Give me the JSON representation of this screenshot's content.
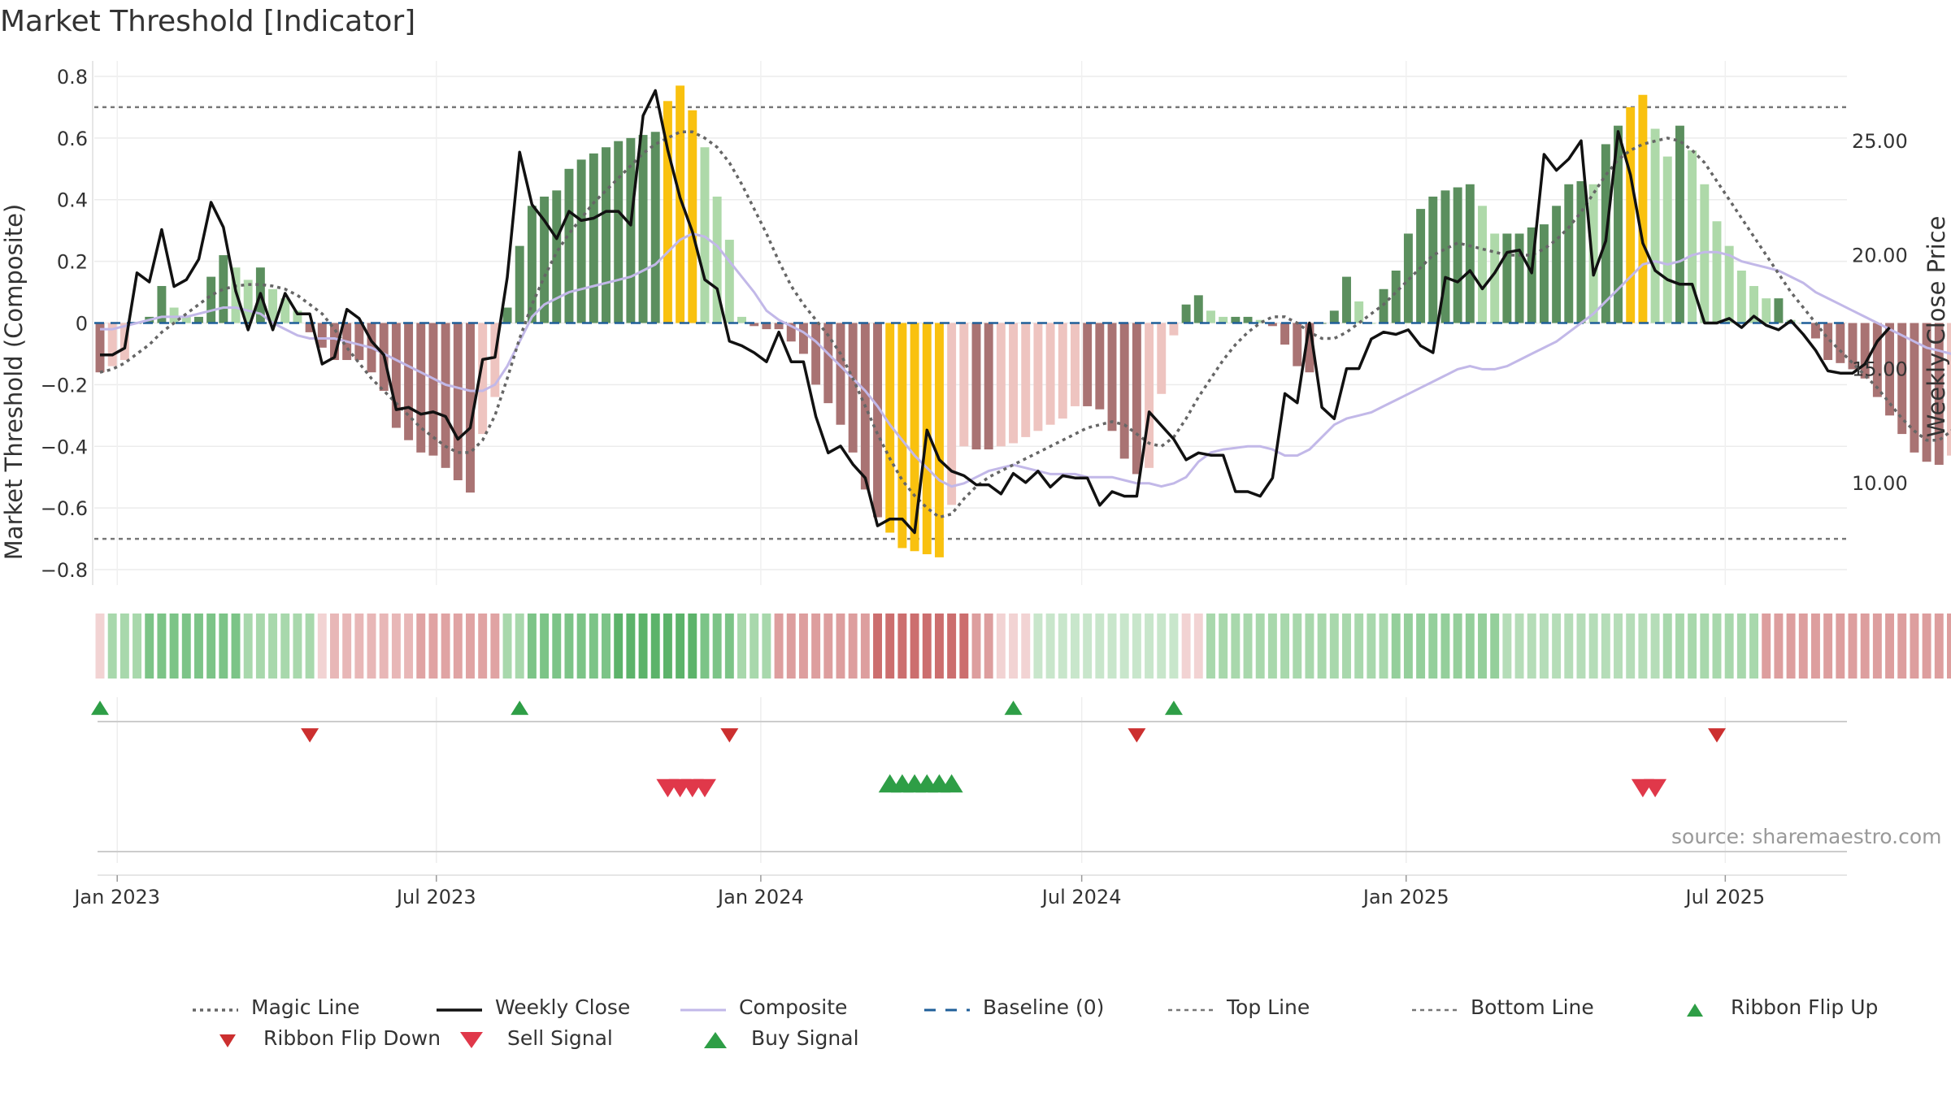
{
  "title": "Market Threshold [Indicator]",
  "source": "source: sharemaestro.com",
  "colors": {
    "magic": "#666666",
    "close": "#111111",
    "composite": "#c2b8e8",
    "baseline": "#1f5f99",
    "threshold": "#777777",
    "flip_up": "#2e9e46",
    "flip_down": "#cc2f2f",
    "sell": "#e0384a",
    "buy": "#2e9e46",
    "extreme": "#f9c10f"
  },
  "legend": [
    {
      "key": "magic",
      "label": "Magic Line"
    },
    {
      "key": "close",
      "label": "Weekly Close"
    },
    {
      "key": "composite",
      "label": "Composite"
    },
    {
      "key": "baseline",
      "label": "Baseline (0)"
    },
    {
      "key": "top",
      "label": "Top Line"
    },
    {
      "key": "bottom",
      "label": "Bottom Line"
    },
    {
      "key": "flip_up",
      "label": "Ribbon Flip Up"
    },
    {
      "key": "flip_down",
      "label": "Ribbon Flip Down"
    },
    {
      "key": "sell",
      "label": "Sell Signal"
    },
    {
      "key": "buy",
      "label": "Buy Signal"
    }
  ],
  "chart_data": {
    "type": "bar",
    "ylabel": "Market Threshold (Composite)",
    "y2label": "Weekly Close Price",
    "ylim": [
      -0.85,
      0.85
    ],
    "y2lim": [
      5.5,
      28.5
    ],
    "yticks": [
      {
        "v": 0.8,
        "t": "0.8"
      },
      {
        "v": 0.6,
        "t": "0.6"
      },
      {
        "v": 0.4,
        "t": "0.4"
      },
      {
        "v": 0.2,
        "t": "0.2"
      },
      {
        "v": 0,
        "t": "0"
      },
      {
        "v": -0.2,
        "t": "−0.2"
      },
      {
        "v": -0.4,
        "t": "−0.4"
      },
      {
        "v": -0.6,
        "t": "−0.6"
      },
      {
        "v": -0.8,
        "t": "−0.8"
      }
    ],
    "y2ticks": [
      {
        "v": 25,
        "t": "25.00"
      },
      {
        "v": 20,
        "t": "20.00"
      },
      {
        "v": 15,
        "t": "15.00"
      },
      {
        "v": 10,
        "t": "10.00"
      }
    ],
    "xlim": [
      "2022-12-19",
      "2025-09-08"
    ],
    "xticks": [
      {
        "d": "2023-01-01",
        "t": "Jan 2023"
      },
      {
        "d": "2023-07-01",
        "t": "Jul 2023"
      },
      {
        "d": "2024-01-01",
        "t": "Jan 2024"
      },
      {
        "d": "2024-07-01",
        "t": "Jul 2024"
      },
      {
        "d": "2025-01-01",
        "t": "Jan 2025"
      },
      {
        "d": "2025-07-01",
        "t": "Jul 2025"
      }
    ],
    "first_week": "2022-12-19",
    "top_line": 0.7,
    "bottom_line": -0.7,
    "composite_bars": [
      -0.16,
      -0.14,
      -0.12,
      0.0,
      0.02,
      0.12,
      0.05,
      0.02,
      0.02,
      0.15,
      0.22,
      0.18,
      0.14,
      0.18,
      0.11,
      0.08,
      0.04,
      -0.03,
      -0.08,
      -0.12,
      -0.12,
      -0.12,
      -0.16,
      -0.22,
      -0.34,
      -0.38,
      -0.42,
      -0.43,
      -0.47,
      -0.51,
      -0.55,
      -0.36,
      -0.24,
      0.05,
      0.25,
      0.38,
      0.41,
      0.43,
      0.5,
      0.53,
      0.55,
      0.57,
      0.59,
      0.6,
      0.61,
      0.62,
      0.72,
      0.77,
      0.69,
      0.57,
      0.41,
      0.27,
      0.02,
      -0.01,
      -0.02,
      -0.02,
      -0.06,
      -0.1,
      -0.2,
      -0.26,
      -0.33,
      -0.42,
      -0.54,
      -0.63,
      -0.68,
      -0.73,
      -0.74,
      -0.75,
      -0.76,
      -0.59,
      -0.4,
      -0.41,
      -0.41,
      -0.4,
      -0.39,
      -0.37,
      -0.35,
      -0.33,
      -0.31,
      -0.27,
      -0.27,
      -0.28,
      -0.35,
      -0.44,
      -0.49,
      -0.47,
      -0.23,
      -0.04,
      0.06,
      0.09,
      0.04,
      0.02,
      0.02,
      0.02,
      0.01,
      -0.01,
      -0.07,
      -0.14,
      -0.16,
      0.0,
      0.04,
      0.15,
      0.07,
      0.0,
      0.11,
      0.17,
      0.29,
      0.37,
      0.41,
      0.43,
      0.44,
      0.45,
      0.38,
      0.29,
      0.29,
      0.29,
      0.31,
      0.32,
      0.38,
      0.45,
      0.46,
      0.45,
      0.58,
      0.64,
      0.7,
      0.74,
      0.63,
      0.54,
      0.64,
      0.56,
      0.45,
      0.33,
      0.25,
      0.17,
      0.12,
      0.08,
      0.08,
      0.01,
      0.0,
      -0.05,
      -0.12,
      -0.13,
      -0.15,
      -0.18,
      -0.24,
      -0.3,
      -0.36,
      -0.42,
      -0.45,
      -0.46,
      -0.43,
      -0.28,
      -0.15
    ],
    "magic_line": [
      -0.16,
      -0.15,
      -0.13,
      -0.1,
      -0.07,
      -0.03,
      0.0,
      0.03,
      0.06,
      0.09,
      0.11,
      0.12,
      0.125,
      0.125,
      0.12,
      0.11,
      0.09,
      0.06,
      0.03,
      -0.02,
      -0.08,
      -0.13,
      -0.18,
      -0.22,
      -0.26,
      -0.3,
      -0.34,
      -0.37,
      -0.4,
      -0.42,
      -0.42,
      -0.38,
      -0.3,
      -0.18,
      -0.05,
      0.06,
      0.15,
      0.23,
      0.29,
      0.34,
      0.39,
      0.43,
      0.47,
      0.51,
      0.55,
      0.58,
      0.6,
      0.62,
      0.62,
      0.6,
      0.57,
      0.52,
      0.45,
      0.37,
      0.29,
      0.2,
      0.12,
      0.06,
      0.01,
      -0.04,
      -0.1,
      -0.18,
      -0.27,
      -0.36,
      -0.44,
      -0.51,
      -0.56,
      -0.6,
      -0.63,
      -0.62,
      -0.57,
      -0.53,
      -0.5,
      -0.48,
      -0.46,
      -0.44,
      -0.42,
      -0.4,
      -0.38,
      -0.36,
      -0.34,
      -0.33,
      -0.32,
      -0.33,
      -0.36,
      -0.39,
      -0.4,
      -0.37,
      -0.31,
      -0.24,
      -0.18,
      -0.12,
      -0.07,
      -0.03,
      0.0,
      0.02,
      0.02,
      0.0,
      -0.03,
      -0.05,
      -0.05,
      -0.03,
      0.0,
      0.03,
      0.06,
      0.1,
      0.14,
      0.18,
      0.22,
      0.24,
      0.26,
      0.25,
      0.24,
      0.23,
      0.22,
      0.22,
      0.22,
      0.24,
      0.27,
      0.31,
      0.36,
      0.42,
      0.48,
      0.53,
      0.56,
      0.58,
      0.59,
      0.6,
      0.59,
      0.56,
      0.52,
      0.46,
      0.4,
      0.34,
      0.28,
      0.22,
      0.16,
      0.1,
      0.05,
      0.0,
      -0.05,
      -0.09,
      -0.13,
      -0.17,
      -0.21,
      -0.26,
      -0.31,
      -0.35,
      -0.38,
      -0.38,
      -0.35,
      -0.3
    ],
    "composite_line": [
      -0.02,
      -0.02,
      -0.01,
      0.0,
      0.01,
      0.02,
      0.02,
      0.02,
      0.03,
      0.04,
      0.05,
      0.05,
      0.04,
      0.03,
      0.0,
      -0.02,
      -0.04,
      -0.05,
      -0.05,
      -0.05,
      -0.06,
      -0.07,
      -0.08,
      -0.1,
      -0.12,
      -0.14,
      -0.16,
      -0.18,
      -0.2,
      -0.21,
      -0.22,
      -0.22,
      -0.2,
      -0.14,
      -0.06,
      0.02,
      0.06,
      0.08,
      0.1,
      0.11,
      0.12,
      0.13,
      0.14,
      0.15,
      0.17,
      0.19,
      0.23,
      0.27,
      0.29,
      0.28,
      0.25,
      0.2,
      0.15,
      0.1,
      0.04,
      0.01,
      -0.01,
      -0.03,
      -0.06,
      -0.1,
      -0.14,
      -0.18,
      -0.22,
      -0.27,
      -0.33,
      -0.38,
      -0.43,
      -0.47,
      -0.51,
      -0.53,
      -0.52,
      -0.5,
      -0.48,
      -0.47,
      -0.46,
      -0.47,
      -0.48,
      -0.49,
      -0.49,
      -0.49,
      -0.5,
      -0.5,
      -0.5,
      -0.51,
      -0.52,
      -0.52,
      -0.53,
      -0.52,
      -0.5,
      -0.45,
      -0.42,
      -0.41,
      -0.405,
      -0.4,
      -0.4,
      -0.41,
      -0.43,
      -0.43,
      -0.41,
      -0.37,
      -0.33,
      -0.31,
      -0.3,
      -0.29,
      -0.27,
      -0.25,
      -0.23,
      -0.21,
      -0.19,
      -0.17,
      -0.15,
      -0.14,
      -0.15,
      -0.15,
      -0.14,
      -0.12,
      -0.1,
      -0.08,
      -0.06,
      -0.03,
      0.0,
      0.03,
      0.07,
      0.11,
      0.15,
      0.19,
      0.2,
      0.19,
      0.2,
      0.22,
      0.23,
      0.23,
      0.22,
      0.2,
      0.19,
      0.18,
      0.17,
      0.15,
      0.13,
      0.1,
      0.08,
      0.06,
      0.04,
      0.02,
      0.0,
      -0.02,
      -0.04,
      -0.06,
      -0.08,
      -0.09,
      -0.1,
      -0.1,
      -0.09,
      -0.08
    ],
    "weekly_close": [
      15.6,
      15.6,
      15.9,
      19.2,
      18.8,
      21.1,
      18.6,
      18.9,
      19.8,
      22.3,
      21.2,
      18.4,
      16.7,
      18.3,
      16.7,
      18.3,
      17.4,
      17.4,
      15.2,
      15.5,
      17.6,
      17.2,
      16.2,
      15.6,
      13.2,
      13.3,
      13.0,
      13.1,
      12.9,
      11.9,
      12.4,
      15.4,
      15.5,
      19.0,
      24.5,
      22.2,
      21.5,
      20.7,
      21.9,
      21.5,
      21.6,
      21.9,
      21.9,
      21.3,
      26.1,
      27.2,
      24.6,
      22.5,
      21.0,
      18.9,
      18.5,
      16.2,
      16.0,
      15.7,
      15.3,
      16.6,
      15.3,
      15.3,
      12.9,
      11.3,
      11.6,
      10.8,
      10.2,
      8.1,
      8.4,
      8.4,
      7.8,
      12.3,
      11.0,
      10.5,
      10.3,
      9.9,
      9.9,
      9.5,
      10.4,
      10.0,
      10.5,
      9.8,
      10.3,
      10.2,
      10.2,
      9.0,
      9.6,
      9.4,
      9.4,
      13.1,
      12.5,
      11.9,
      11.0,
      11.3,
      11.2,
      11.2,
      9.6,
      9.6,
      9.4,
      10.2,
      13.9,
      13.5,
      17.0,
      13.3,
      12.8,
      15.0,
      15.0,
      16.3,
      16.6,
      16.5,
      16.7,
      16.0,
      15.7,
      19.0,
      18.8,
      19.3,
      18.5,
      19.2,
      20.1,
      20.2,
      19.2,
      24.4,
      23.7,
      24.2,
      25.0,
      19.1,
      20.6,
      25.4,
      23.5,
      20.5,
      19.3,
      18.9,
      18.7,
      18.7,
      17.0,
      17.0,
      17.2,
      16.8,
      17.3,
      16.9,
      16.7,
      17.1,
      16.5,
      15.8,
      14.9,
      14.8,
      14.8,
      15.2,
      16.2,
      16.8
    ]
  },
  "ribbon": {
    "bands": [
      {
        "to": 0,
        "c": "#f2d3d3"
      },
      {
        "to": 3,
        "c": "#a8d8ac"
      },
      {
        "to": 11,
        "c": "#7cc487"
      },
      {
        "to": 17,
        "c": "#a8d8ac"
      },
      {
        "to": 18,
        "c": "#f2d3d3"
      },
      {
        "to": 25,
        "c": "#e8b7b7"
      },
      {
        "to": 32,
        "c": "#e0a3a3"
      },
      {
        "to": 34,
        "c": "#a8d8ac"
      },
      {
        "to": 41,
        "c": "#7cc487"
      },
      {
        "to": 48,
        "c": "#5cb36a"
      },
      {
        "to": 51,
        "c": "#7cc487"
      },
      {
        "to": 54,
        "c": "#a8d8ac"
      },
      {
        "to": 62,
        "c": "#dd9e9e"
      },
      {
        "to": 70,
        "c": "#cc6e6e"
      },
      {
        "to": 72,
        "c": "#dd9e9e"
      },
      {
        "to": 75,
        "c": "#f2d3d3"
      },
      {
        "to": 87,
        "c": "#c8e6cb"
      },
      {
        "to": 89,
        "c": "#f2d3d3"
      },
      {
        "to": 104,
        "c": "#a8d8ac"
      },
      {
        "to": 113,
        "c": "#94cf9b"
      },
      {
        "to": 126,
        "c": "#b5ddb8"
      },
      {
        "to": 134,
        "c": "#a8d8ac"
      },
      {
        "to": 151,
        "c": "#dd9e9e"
      },
      {
        "to": 151,
        "c": "#e8b7b7"
      }
    ]
  },
  "markers": {
    "flip_up": [
      0,
      34,
      74,
      87
    ],
    "flip_down": [
      17,
      51,
      84,
      131
    ],
    "sell": [
      46,
      47,
      48,
      49,
      125,
      126
    ],
    "buy": [
      64,
      65,
      66,
      67,
      68,
      69
    ]
  }
}
